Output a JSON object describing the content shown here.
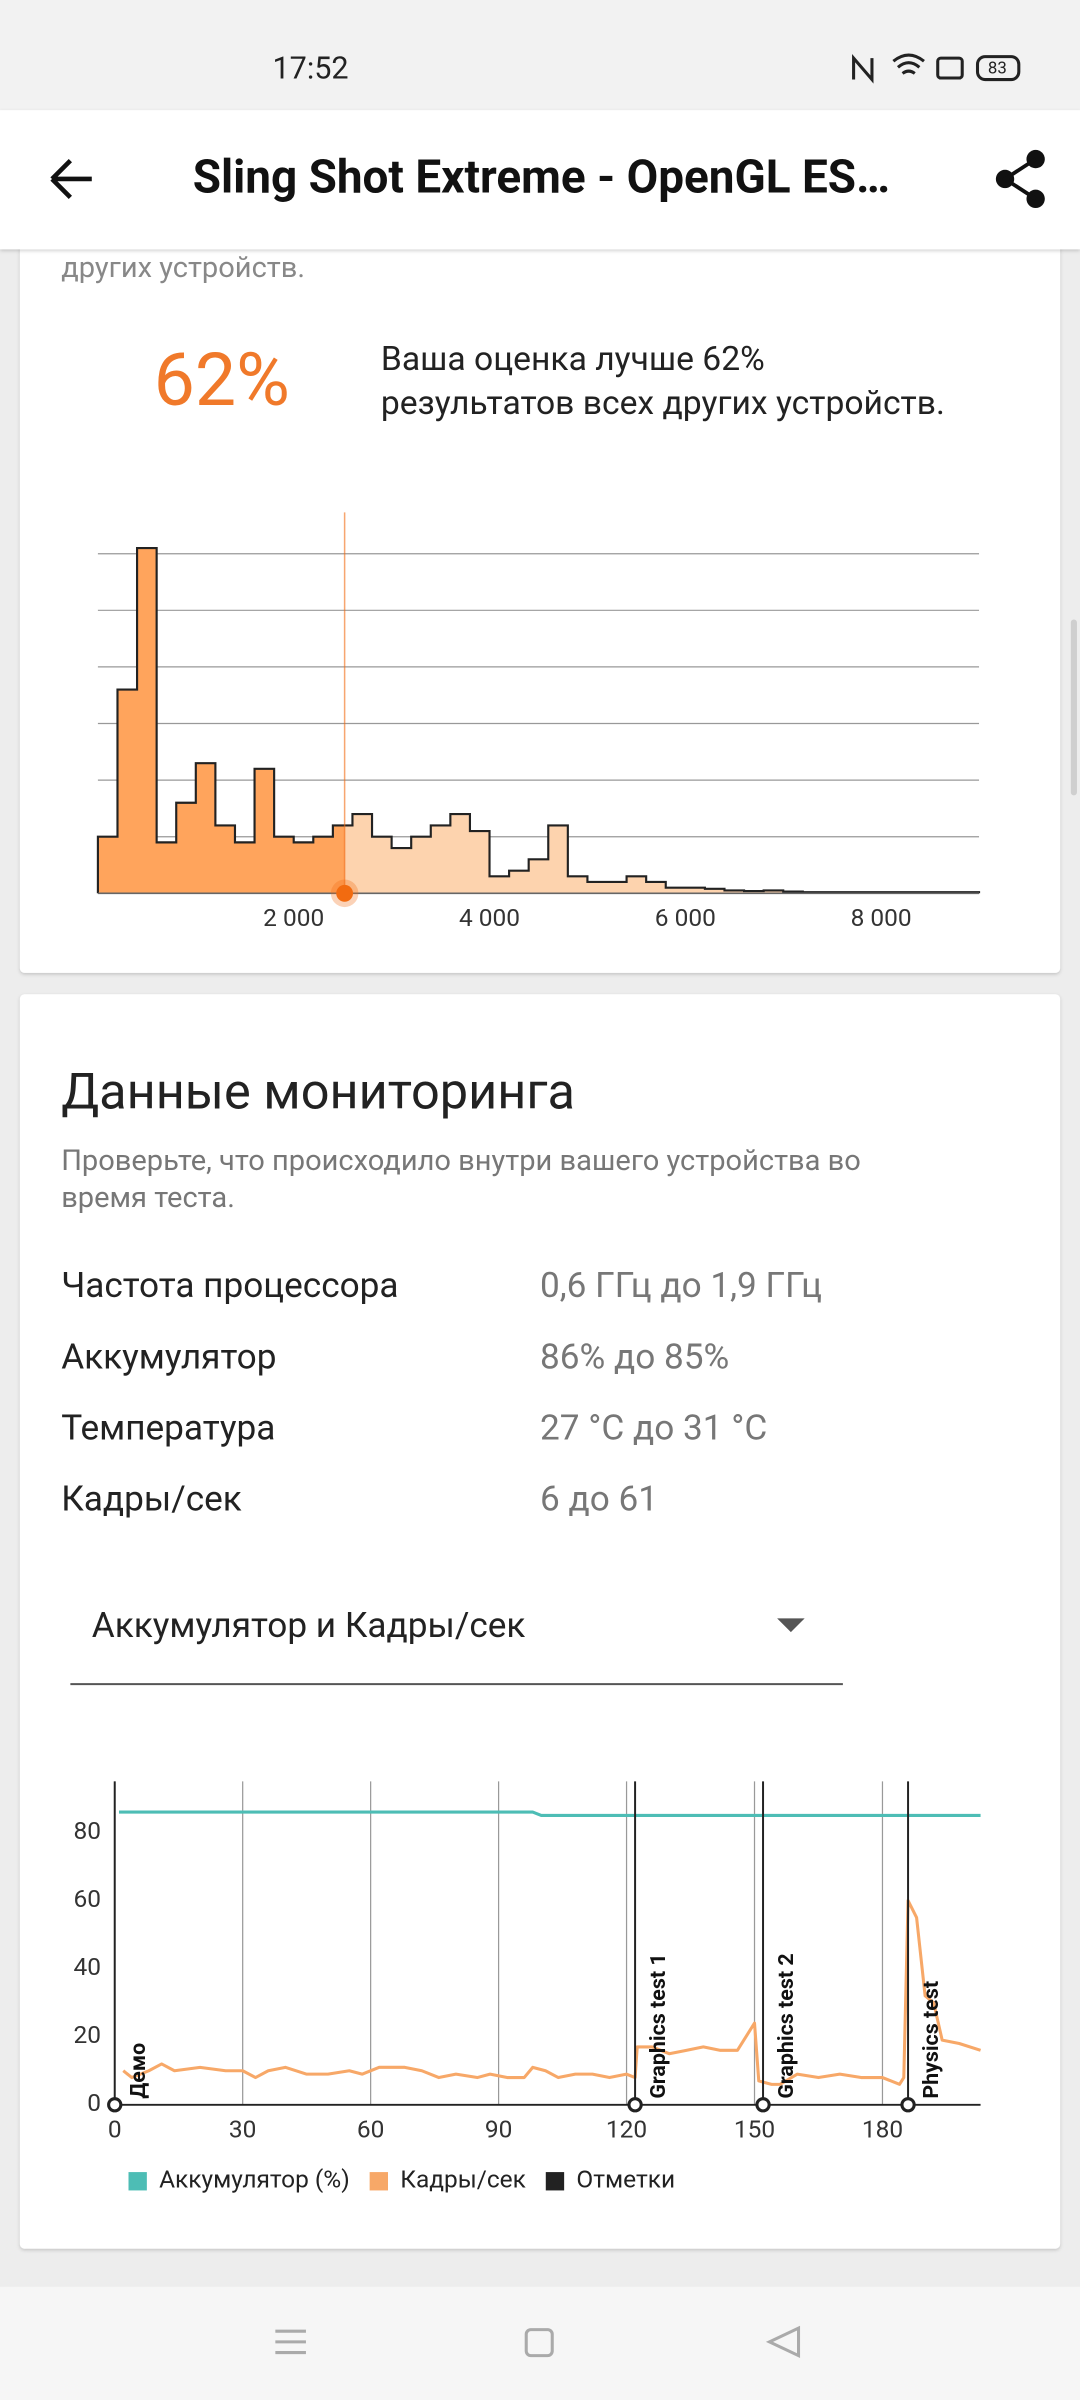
{
  "status_bar": {
    "time": "17:52",
    "battery": "83"
  },
  "app_bar": {
    "title": "Sling Shot Extreme - OpenGL ES…"
  },
  "score_card": {
    "intro_tail": "других устройств.",
    "percent": "62%",
    "description_lines": [
      "Ваша оценка лучше 62%",
      "результатов всех других устройств."
    ]
  },
  "monitoring": {
    "title": "Данные мониторинга",
    "subtitle_lines": [
      "Проверьте, что происходило внутри вашего устройства во",
      "время теста."
    ],
    "rows": [
      [
        "Частота процессора",
        "0,6 ГГц до 1,9 ГГц"
      ],
      [
        "Аккумулятор",
        "86% до 85%"
      ],
      [
        "Температура",
        "27 °C до 31 °C"
      ],
      [
        "Кадры/сек",
        "6 до 61"
      ]
    ],
    "dropdown": "Аккумулятор и Кадры/сек"
  },
  "chart_data": [
    {
      "type": "histogram",
      "bins": [
        0,
        200,
        400,
        600,
        800,
        1000,
        1200,
        1400,
        1600,
        1800,
        2000,
        2200,
        2400,
        2600,
        2800,
        3000,
        3200,
        3400,
        3600,
        3800,
        4000,
        4200,
        4400,
        4600,
        4800,
        5000,
        5200,
        5400,
        5600,
        5800,
        6000,
        6200,
        6400,
        6600,
        6800,
        7000,
        7200,
        7400,
        7600,
        7800,
        8000,
        8200,
        8400,
        8600,
        8800,
        9000
      ],
      "counts": [
        1.0,
        3.6,
        6.1,
        0.9,
        1.6,
        2.3,
        1.2,
        0.9,
        2.2,
        1.0,
        0.9,
        1.0,
        1.2,
        1.4,
        1.0,
        0.8,
        1.0,
        1.2,
        1.4,
        1.1,
        0.3,
        0.4,
        0.6,
        1.2,
        0.3,
        0.2,
        0.2,
        0.3,
        0.2,
        0.1,
        0.1,
        0.08,
        0.05,
        0.04,
        0.05,
        0.03,
        0.02,
        0.02,
        0.02,
        0.02,
        0.02,
        0.02,
        0.02,
        0.02,
        0.02
      ],
      "xlim": [
        0,
        9000
      ],
      "xticks": [
        {
          "value": 2000,
          "label": "2 000"
        },
        {
          "value": 4000,
          "label": "4 000"
        },
        {
          "value": 6000,
          "label": "6 000"
        },
        {
          "value": 8000,
          "label": "8 000"
        }
      ],
      "ylim": [
        0,
        6.5
      ],
      "grid_lines": [
        1,
        2,
        3,
        4,
        5,
        6
      ],
      "color": "#ffa45c",
      "color_above_marker": "#fdd3ae",
      "marker": 2520,
      "marker_color": "#f26b10"
    },
    {
      "type": "line",
      "xlim": [
        0,
        203
      ],
      "xticks": [
        0,
        30,
        60,
        90,
        120,
        150,
        180
      ],
      "ylim": [
        0,
        95
      ],
      "yticks": [
        0,
        20,
        40,
        60,
        80
      ],
      "grid": true,
      "series": [
        {
          "name": "Аккумулятор (%)",
          "color": "#4dbdb5",
          "x": [
            1,
            98,
            100,
            203
          ],
          "values": [
            86,
            86,
            85,
            85
          ]
        },
        {
          "name": "Кадры/сек",
          "color": "#f7a868",
          "x": [
            2,
            4,
            8,
            11,
            14,
            20,
            26,
            30,
            33,
            36,
            40,
            45,
            50,
            55,
            58,
            62,
            68,
            72,
            76,
            80,
            85,
            88,
            92,
            96,
            98,
            101,
            104,
            108,
            112,
            116,
            120,
            122,
            122.5,
            126,
            130,
            134,
            138,
            142,
            146,
            150,
            151,
            154,
            156,
            160,
            165,
            170,
            175,
            180,
            184,
            185,
            186,
            188,
            190,
            192,
            194,
            198,
            203
          ],
          "values": [
            10,
            8,
            10,
            12,
            10,
            11,
            10,
            10,
            8,
            10,
            11,
            9,
            9,
            10,
            9,
            11,
            11,
            10,
            8,
            9,
            8,
            9,
            8,
            8,
            11,
            10,
            8,
            9,
            9,
            8,
            9,
            8,
            17,
            17,
            15,
            16,
            17,
            16,
            16,
            24,
            7,
            6,
            6,
            9,
            8,
            9,
            8,
            8,
            6,
            8,
            60,
            55,
            32,
            30,
            19,
            18,
            16
          ]
        }
      ],
      "events": {
        "name": "Отметки",
        "color": "#222222",
        "x": [
          0,
          122,
          152,
          186
        ],
        "labels": [
          "Демо",
          "Graphics test 1",
          "Graphics test 2",
          "Physics test"
        ]
      }
    }
  ]
}
